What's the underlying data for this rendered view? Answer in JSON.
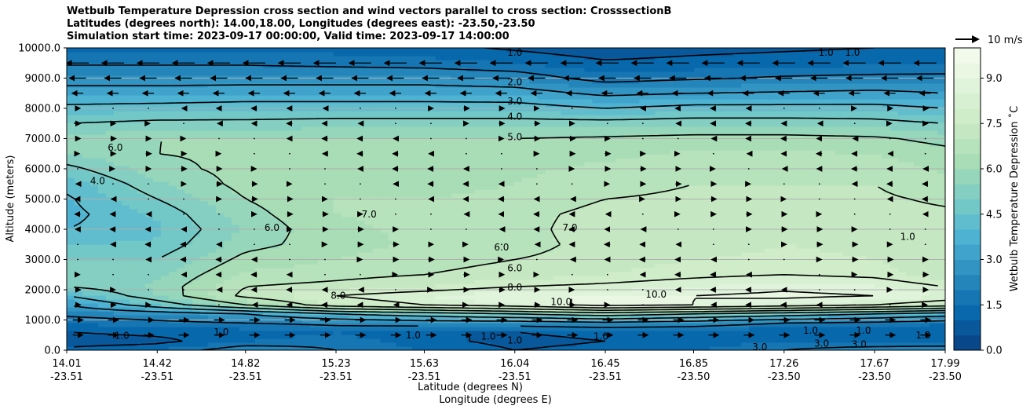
{
  "title_lines": [
    "Wetbulb Temperature Depression cross section and wind vectors parallel to cross section: CrosssectionB",
    "Latitudes (degrees north): 14.00,18.00, Longitudes (degrees east): -23.50,-23.50",
    "Simulation start time: 2023-09-17 00:00:00, Valid time: 2023-09-17 14:00:00"
  ],
  "chart_data": {
    "type": "heatmap",
    "xlabel_lat": "Latitude (degrees N)",
    "xlabel_lon": "Longitude (degrees E)",
    "ylabel": "Altitude (meters)",
    "colorbar_label": "Wetbulb Temperature Depression ˚C",
    "ylim": [
      0,
      10000
    ],
    "xlim": [
      14.01,
      17.99
    ],
    "y_ticks": [
      "0.0",
      "1000.0",
      "2000.0",
      "3000.0",
      "4000.0",
      "5000.0",
      "6000.0",
      "7000.0",
      "8000.0",
      "9000.0",
      "10000.0"
    ],
    "y_tick_values": [
      0,
      1000,
      2000,
      3000,
      4000,
      5000,
      6000,
      7000,
      8000,
      9000,
      10000
    ],
    "x_ticks": [
      {
        "lat": "14.01",
        "lon": "-23.51",
        "x": 14.01
      },
      {
        "lat": "14.42",
        "lon": "-23.51",
        "x": 14.42
      },
      {
        "lat": "14.82",
        "lon": "-23.51",
        "x": 14.82
      },
      {
        "lat": "15.23",
        "lon": "-23.51",
        "x": 15.23
      },
      {
        "lat": "15.63",
        "lon": "-23.51",
        "x": 15.63
      },
      {
        "lat": "16.04",
        "lon": "-23.51",
        "x": 16.04
      },
      {
        "lat": "16.45",
        "lon": "-23.51",
        "x": 16.45
      },
      {
        "lat": "16.85",
        "lon": "-23.50",
        "x": 16.85
      },
      {
        "lat": "17.26",
        "lon": "-23.50",
        "x": 17.26
      },
      {
        "lat": "17.67",
        "lon": "-23.50",
        "x": 17.67
      },
      {
        "lat": "17.99",
        "lon": "-23.50",
        "x": 17.99
      }
    ],
    "colorbar_ticks": [
      "0.0",
      "1.5",
      "3.0",
      "4.5",
      "6.0",
      "7.5",
      "9.0"
    ],
    "colorbar_tick_values": [
      0,
      1.5,
      3,
      4.5,
      6,
      7.5,
      9
    ],
    "colorbar_range": [
      0,
      10
    ],
    "wind_key_label": "10 m/s",
    "grid": "horizontal",
    "profile_altitudes": [
      0,
      300,
      600,
      900,
      1200,
      1500,
      1800,
      2100,
      2500,
      3000,
      3500,
      4000,
      4500,
      5000,
      5500,
      6000,
      6500,
      7000,
      7500,
      8000,
      8500,
      9000,
      9500,
      10000
    ],
    "profiles": [
      {
        "x": 14.01,
        "values": [
          1.2,
          0.6,
          1.0,
          1.5,
          2.2,
          3.0,
          4.0,
          5.0,
          5.2,
          5.0,
          4.5,
          4.0,
          3.8,
          3.9,
          4.2,
          4.8,
          5.5,
          5.6,
          5.0,
          4.2,
          3.4,
          2.6,
          1.9,
          1.4
        ]
      },
      {
        "x": 14.42,
        "values": [
          1.5,
          0.8,
          1.2,
          1.8,
          2.5,
          4.5,
          5.5,
          5.6,
          5.4,
          5.0,
          4.6,
          4.4,
          4.6,
          5.0,
          5.4,
          5.8,
          6.0,
          6.0,
          5.2,
          4.3,
          3.4,
          2.6,
          1.9,
          1.4
        ]
      },
      {
        "x": 14.82,
        "values": [
          2.5,
          1.5,
          1.2,
          2.0,
          3.0,
          6.0,
          7.2,
          7.0,
          6.6,
          6.2,
          5.8,
          5.6,
          5.8,
          6.0,
          6.2,
          6.2,
          6.1,
          6.0,
          5.2,
          4.4,
          3.5,
          2.6,
          1.9,
          1.4
        ]
      },
      {
        "x": 15.23,
        "values": [
          2.0,
          1.8,
          1.5,
          2.2,
          4.0,
          7.5,
          8.0,
          7.2,
          6.8,
          6.5,
          6.3,
          6.4,
          6.5,
          6.5,
          6.4,
          6.3,
          6.2,
          6.0,
          5.3,
          4.4,
          3.5,
          2.6,
          1.8,
          1.3
        ]
      },
      {
        "x": 15.63,
        "values": [
          1.5,
          1.2,
          1.0,
          2.5,
          4.5,
          8.0,
          8.5,
          7.5,
          7.0,
          6.8,
          6.6,
          6.6,
          6.6,
          6.5,
          6.4,
          6.3,
          6.2,
          6.0,
          5.3,
          4.4,
          3.5,
          2.6,
          1.7,
          1.2
        ]
      },
      {
        "x": 16.04,
        "values": [
          1.0,
          0.8,
          1.0,
          2.5,
          5.0,
          8.5,
          9.0,
          8.0,
          7.2,
          7.0,
          6.8,
          6.8,
          6.8,
          6.6,
          6.5,
          6.4,
          6.3,
          6.0,
          5.3,
          4.4,
          3.4,
          2.4,
          1.5,
          0.9
        ]
      },
      {
        "x": 16.45,
        "values": [
          1.2,
          1.0,
          1.2,
          2.8,
          5.5,
          9.3,
          9.0,
          8.2,
          7.5,
          7.2,
          7.2,
          7.3,
          7.2,
          7.0,
          6.8,
          6.6,
          6.4,
          6.1,
          5.3,
          4.0,
          2.8,
          1.7,
          1.1,
          0.6
        ]
      },
      {
        "x": 16.85,
        "values": [
          1.5,
          1.2,
          1.2,
          2.5,
          5.0,
          9.0,
          9.0,
          8.5,
          7.8,
          7.5,
          7.3,
          7.2,
          7.2,
          7.1,
          7.0,
          6.8,
          6.6,
          6.2,
          5.4,
          4.3,
          3.0,
          1.9,
          1.2,
          0.8
        ]
      },
      {
        "x": 17.26,
        "values": [
          2.0,
          1.5,
          1.0,
          2.0,
          4.5,
          8.5,
          9.2,
          8.8,
          8.0,
          7.6,
          7.5,
          7.4,
          7.3,
          7.2,
          7.0,
          6.8,
          6.6,
          6.2,
          5.4,
          4.3,
          3.1,
          2.1,
          1.3,
          0.9
        ]
      },
      {
        "x": 17.67,
        "values": [
          2.5,
          1.2,
          1.0,
          1.8,
          4.0,
          8.0,
          9.0,
          8.6,
          7.8,
          7.5,
          7.4,
          7.3,
          7.2,
          7.1,
          7.0,
          6.8,
          6.5,
          6.1,
          5.3,
          4.3,
          3.2,
          2.2,
          1.4,
          1.0
        ]
      },
      {
        "x": 17.99,
        "values": [
          2.8,
          1.0,
          1.2,
          1.5,
          3.5,
          7.5,
          8.5,
          8.0,
          7.2,
          7.0,
          7.2,
          7.2,
          7.1,
          6.9,
          6.6,
          6.4,
          6.2,
          5.8,
          5.0,
          4.0,
          3.0,
          2.2,
          1.5,
          1.1
        ]
      }
    ],
    "contour_levels": [
      1,
      2,
      3,
      4,
      5,
      6,
      7,
      8,
      9
    ],
    "contour_labels": [
      {
        "text": "1.0",
        "x": 16.04,
        "y": 9850
      },
      {
        "text": "2.0",
        "x": 16.04,
        "y": 8870
      },
      {
        "text": "3.0",
        "x": 16.04,
        "y": 8230
      },
      {
        "text": "4.0",
        "x": 16.04,
        "y": 7730
      },
      {
        "text": "5.0",
        "x": 16.04,
        "y": 7050
      },
      {
        "text": "6.0",
        "x": 16.04,
        "y": 2720
      },
      {
        "text": "8.0",
        "x": 16.04,
        "y": 2080
      },
      {
        "text": "7.0",
        "x": 15.38,
        "y": 4500
      },
      {
        "text": "6.0",
        "x": 14.94,
        "y": 4050
      },
      {
        "text": "4.0",
        "x": 14.15,
        "y": 5600
      },
      {
        "text": "6.0",
        "x": 14.23,
        "y": 6700
      },
      {
        "text": "7.0",
        "x": 16.29,
        "y": 4050
      },
      {
        "text": "6.0",
        "x": 15.98,
        "y": 3400
      },
      {
        "text": "8.0",
        "x": 15.24,
        "y": 1800
      },
      {
        "text": "10.0",
        "x": 16.25,
        "y": 1600
      },
      {
        "text": "10.0",
        "x": 16.68,
        "y": 1850
      },
      {
        "text": "1.0",
        "x": 17.82,
        "y": 3750
      },
      {
        "text": "1.0",
        "x": 16.04,
        "y": 330
      },
      {
        "text": "1.0",
        "x": 14.26,
        "y": 480
      },
      {
        "text": "1.0",
        "x": 14.71,
        "y": 600
      },
      {
        "text": "1.0",
        "x": 15.58,
        "y": 500
      },
      {
        "text": "1.0",
        "x": 15.92,
        "y": 450
      },
      {
        "text": "1.0",
        "x": 16.43,
        "y": 450
      },
      {
        "text": "3.0",
        "x": 17.15,
        "y": 100
      },
      {
        "text": "3.0",
        "x": 17.43,
        "y": 220
      },
      {
        "text": "3.0",
        "x": 17.6,
        "y": 200
      },
      {
        "text": "1.0",
        "x": 17.38,
        "y": 650
      },
      {
        "text": "1.0",
        "x": 17.62,
        "y": 650
      },
      {
        "text": "1.0",
        "x": 17.89,
        "y": 500
      },
      {
        "text": "1.0",
        "x": 17.57,
        "y": 9850
      },
      {
        "text": "1.0",
        "x": 17.45,
        "y": 9850
      }
    ]
  },
  "colors": {
    "colormap": [
      "#084081",
      "#0868ac",
      "#2b8cbe",
      "#4eb3d3",
      "#7bccc4",
      "#a8ddb5",
      "#ccebc5",
      "#e0f3db",
      "#f7fcf0"
    ],
    "contour": "#000000",
    "grid": "#b0b0b0",
    "arrow": "#000000"
  }
}
